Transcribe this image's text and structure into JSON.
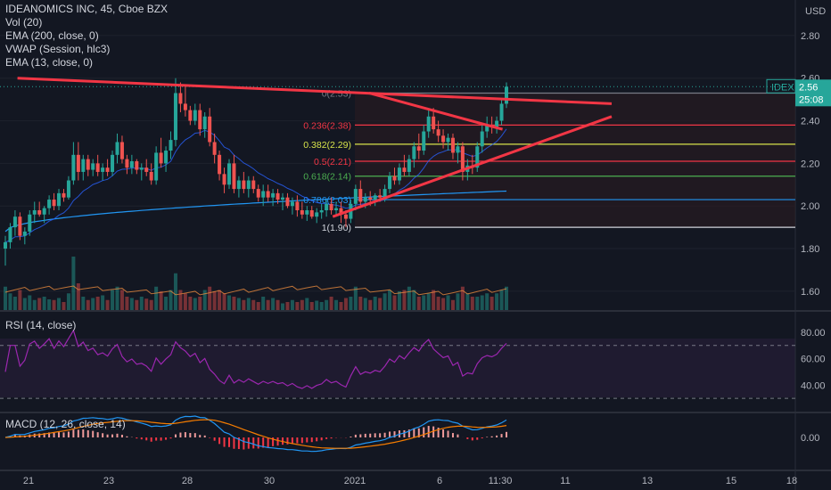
{
  "header": {
    "title": "IDEANOMICS INC, 45, Cboe BZX",
    "indicators": [
      "Vol (20)",
      "EMA (200, close, 0)",
      "VWAP (Session, hlc3)",
      "EMA (13, close, 0)"
    ]
  },
  "price_axis": {
    "currency": "USD",
    "ticks": [
      "2.80",
      "2.60",
      "2.40",
      "2.20",
      "2.00",
      "1.80",
      "1.60"
    ]
  },
  "rsi": {
    "label": "RSI (14, close)",
    "ticks": [
      "80.00",
      "60.00",
      "40.00"
    ]
  },
  "macd": {
    "label": "MACD (12, 26, close, 14)",
    "ticks": [
      "0.00"
    ]
  },
  "time_axis": {
    "labels": [
      "21",
      "23",
      "28",
      "30",
      "2021",
      "6",
      "11:30",
      "11",
      "13",
      "15",
      "18"
    ]
  },
  "price_tag": {
    "symbol": "IDEX",
    "price": "2.56",
    "countdown": "25:08"
  },
  "fibonacci": {
    "levels": [
      {
        "label": "0(2.53)",
        "value": 2.53,
        "color": "#787b86"
      },
      {
        "label": "0.236(2.38)",
        "value": 2.38,
        "color": "#f23645"
      },
      {
        "label": "0.382(2.29)",
        "value": 2.29,
        "color": "#d7e34a"
      },
      {
        "label": "0.5(2.21)",
        "value": 2.21,
        "color": "#f23645"
      },
      {
        "label": "0.618(2.14)",
        "value": 2.14,
        "color": "#4caf50"
      },
      {
        "label": "0.786(2.03)",
        "value": 2.03,
        "color": "#2196f3"
      },
      {
        "label": "1(1.90)",
        "value": 1.9,
        "color": "#d1d4dc"
      }
    ]
  },
  "colors": {
    "up": "#26a69a",
    "down": "#ef5350",
    "ema200": "#2196f3",
    "ema13": "#f23645",
    "vwap": "#e98a3d",
    "rsi": "#9c27b0",
    "macd": "#2196f3",
    "signal": "#f57c00",
    "trendline": "#f23645",
    "background": "#131722"
  },
  "chart_data": {
    "type": "candlestick",
    "title": "IDEANOMICS INC, 45, Cboe BZX",
    "price_range": [
      1.52,
      2.9
    ],
    "ohlc": [
      [
        1.8,
        1.86,
        1.72,
        1.83
      ],
      [
        1.83,
        1.92,
        1.8,
        1.9
      ],
      [
        1.9,
        1.98,
        1.86,
        1.95
      ],
      [
        1.95,
        1.97,
        1.84,
        1.86
      ],
      [
        1.86,
        1.9,
        1.82,
        1.88
      ],
      [
        1.88,
        1.98,
        1.86,
        1.96
      ],
      [
        1.96,
        2.02,
        1.92,
        1.98
      ],
      [
        1.98,
        2.02,
        1.95,
        1.96
      ],
      [
        1.96,
        2.0,
        1.92,
        1.99
      ],
      [
        1.99,
        2.05,
        1.96,
        2.03
      ],
      [
        2.03,
        2.06,
        1.98,
        2.0
      ],
      [
        2.0,
        2.08,
        1.98,
        2.06
      ],
      [
        2.06,
        2.08,
        2.02,
        2.04
      ],
      [
        2.04,
        2.14,
        2.03,
        2.12
      ],
      [
        2.12,
        2.3,
        2.1,
        2.24
      ],
      [
        2.24,
        2.3,
        2.12,
        2.16
      ],
      [
        2.16,
        2.24,
        2.12,
        2.22
      ],
      [
        2.22,
        2.24,
        2.14,
        2.17
      ],
      [
        2.17,
        2.22,
        2.14,
        2.2
      ],
      [
        2.2,
        2.24,
        2.14,
        2.16
      ],
      [
        2.16,
        2.2,
        2.12,
        2.18
      ],
      [
        2.18,
        2.22,
        2.14,
        2.16
      ],
      [
        2.16,
        2.26,
        2.14,
        2.24
      ],
      [
        2.24,
        2.34,
        2.2,
        2.3
      ],
      [
        2.3,
        2.33,
        2.2,
        2.22
      ],
      [
        2.22,
        2.24,
        2.15,
        2.18
      ],
      [
        2.18,
        2.24,
        2.15,
        2.21
      ],
      [
        2.21,
        2.22,
        2.15,
        2.17
      ],
      [
        2.17,
        2.2,
        2.12,
        2.18
      ],
      [
        2.18,
        2.22,
        2.14,
        2.16
      ],
      [
        2.16,
        2.2,
        2.1,
        2.12
      ],
      [
        2.12,
        2.28,
        2.1,
        2.25
      ],
      [
        2.25,
        2.32,
        2.18,
        2.2
      ],
      [
        2.2,
        2.28,
        2.16,
        2.26
      ],
      [
        2.26,
        2.35,
        2.22,
        2.31
      ],
      [
        2.31,
        2.6,
        2.28,
        2.53
      ],
      [
        2.53,
        2.58,
        2.44,
        2.48
      ],
      [
        2.48,
        2.56,
        2.42,
        2.45
      ],
      [
        2.45,
        2.47,
        2.38,
        2.4
      ],
      [
        2.4,
        2.48,
        2.38,
        2.45
      ],
      [
        2.45,
        2.48,
        2.33,
        2.36
      ],
      [
        2.36,
        2.44,
        2.32,
        2.42
      ],
      [
        2.42,
        2.46,
        2.28,
        2.3
      ],
      [
        2.3,
        2.34,
        2.2,
        2.24
      ],
      [
        2.24,
        2.26,
        2.12,
        2.15
      ],
      [
        2.15,
        2.18,
        2.06,
        2.1
      ],
      [
        2.1,
        2.22,
        2.08,
        2.2
      ],
      [
        2.2,
        2.24,
        2.06,
        2.08
      ],
      [
        2.08,
        2.14,
        2.04,
        2.12
      ],
      [
        2.12,
        2.16,
        2.06,
        2.08
      ],
      [
        2.08,
        2.14,
        2.04,
        2.12
      ],
      [
        2.12,
        2.14,
        2.06,
        2.08
      ],
      [
        2.08,
        2.1,
        2.02,
        2.04
      ],
      [
        2.04,
        2.1,
        2.0,
        2.07
      ],
      [
        2.07,
        2.1,
        2.02,
        2.04
      ],
      [
        2.04,
        2.08,
        2.0,
        2.06
      ],
      [
        2.06,
        2.08,
        2.01,
        2.03
      ],
      [
        2.03,
        2.06,
        1.98,
        2.04
      ],
      [
        2.04,
        2.06,
        1.99,
        2.0
      ],
      [
        2.0,
        2.04,
        1.96,
        2.02
      ],
      [
        2.02,
        2.05,
        1.95,
        1.98
      ],
      [
        1.98,
        2.02,
        1.94,
        1.96
      ],
      [
        1.96,
        2.0,
        1.93,
        1.98
      ],
      [
        1.98,
        2.0,
        1.94,
        1.95
      ],
      [
        1.95,
        1.99,
        1.92,
        1.97
      ],
      [
        1.97,
        2.01,
        1.94,
        1.98
      ],
      [
        1.98,
        2.03,
        1.95,
        2.01
      ],
      [
        2.01,
        2.04,
        1.96,
        1.98
      ],
      [
        1.98,
        2.02,
        1.95,
        1.99
      ],
      [
        1.99,
        2.02,
        1.92,
        1.96
      ],
      [
        1.96,
        1.98,
        1.9,
        1.94
      ],
      [
        1.94,
        2.03,
        1.92,
        2.01
      ],
      [
        2.01,
        2.1,
        1.98,
        2.08
      ],
      [
        2.08,
        2.12,
        2.0,
        2.02
      ],
      [
        2.02,
        2.06,
        1.99,
        2.04
      ],
      [
        2.04,
        2.07,
        2.0,
        2.03
      ],
      [
        2.03,
        2.06,
        2.0,
        2.05
      ],
      [
        2.05,
        2.08,
        2.02,
        2.04
      ],
      [
        2.04,
        2.1,
        2.02,
        2.08
      ],
      [
        2.08,
        2.16,
        2.06,
        2.14
      ],
      [
        2.14,
        2.18,
        2.1,
        2.12
      ],
      [
        2.12,
        2.2,
        2.1,
        2.18
      ],
      [
        2.18,
        2.24,
        2.14,
        2.16
      ],
      [
        2.16,
        2.24,
        2.14,
        2.22
      ],
      [
        2.22,
        2.3,
        2.18,
        2.28
      ],
      [
        2.28,
        2.34,
        2.22,
        2.26
      ],
      [
        2.26,
        2.38,
        2.24,
        2.35
      ],
      [
        2.35,
        2.45,
        2.32,
        2.42
      ],
      [
        2.42,
        2.46,
        2.34,
        2.36
      ],
      [
        2.36,
        2.4,
        2.3,
        2.33
      ],
      [
        2.33,
        2.36,
        2.27,
        2.3
      ],
      [
        2.3,
        2.34,
        2.26,
        2.32
      ],
      [
        2.32,
        2.34,
        2.22,
        2.25
      ],
      [
        2.25,
        2.3,
        2.2,
        2.28
      ],
      [
        2.28,
        2.3,
        2.12,
        2.16
      ],
      [
        2.16,
        2.22,
        2.12,
        2.19
      ],
      [
        2.19,
        2.24,
        2.15,
        2.18
      ],
      [
        2.18,
        2.3,
        2.16,
        2.28
      ],
      [
        2.28,
        2.38,
        2.25,
        2.35
      ],
      [
        2.35,
        2.42,
        2.32,
        2.38
      ],
      [
        2.38,
        2.42,
        2.34,
        2.37
      ],
      [
        2.37,
        2.42,
        2.34,
        2.4
      ],
      [
        2.4,
        2.5,
        2.38,
        2.48
      ],
      [
        2.48,
        2.58,
        2.46,
        2.56
      ]
    ],
    "volume": [
      0.35,
      0.25,
      0.2,
      0.3,
      0.18,
      0.22,
      0.15,
      0.18,
      0.2,
      0.16,
      0.15,
      0.18,
      0.12,
      0.25,
      0.8,
      0.4,
      0.2,
      0.15,
      0.18,
      0.2,
      0.22,
      0.15,
      0.3,
      0.35,
      0.3,
      0.2,
      0.18,
      0.15,
      0.2,
      0.17,
      0.15,
      0.35,
      0.28,
      0.2,
      0.3,
      0.55,
      0.3,
      0.25,
      0.2,
      0.18,
      0.2,
      0.3,
      0.35,
      0.28,
      0.3,
      0.25,
      0.22,
      0.2,
      0.18,
      0.15,
      0.18,
      0.15,
      0.12,
      0.2,
      0.15,
      0.18,
      0.15,
      0.1,
      0.12,
      0.15,
      0.12,
      0.15,
      0.18,
      0.12,
      0.14,
      0.12,
      0.15,
      0.2,
      0.15,
      0.12,
      0.18,
      0.2,
      0.35,
      0.2,
      0.18,
      0.15,
      0.2,
      0.18,
      0.25,
      0.3,
      0.22,
      0.28,
      0.3,
      0.35,
      0.3,
      0.2,
      0.22,
      0.25,
      0.3,
      0.2,
      0.18,
      0.22,
      0.15,
      0.25,
      0.35,
      0.25,
      0.2,
      0.2,
      0.22,
      0.25,
      0.2,
      0.25,
      0.3,
      0.35
    ],
    "trendlines": [
      {
        "from": [
          0.02,
          2.6
        ],
        "to": [
          1.0,
          2.48
        ]
      },
      {
        "from": [
          0.6,
          2.53
        ],
        "to": [
          0.82,
          2.36
        ]
      },
      {
        "from": [
          0.54,
          1.95
        ],
        "to": [
          1.0,
          2.42
        ]
      }
    ],
    "ema200_last": 2.07,
    "rsi_ylim": [
      20,
      90
    ],
    "rsi_bands": [
      30,
      70
    ],
    "x_range_days": [
      "21",
      "15"
    ]
  }
}
